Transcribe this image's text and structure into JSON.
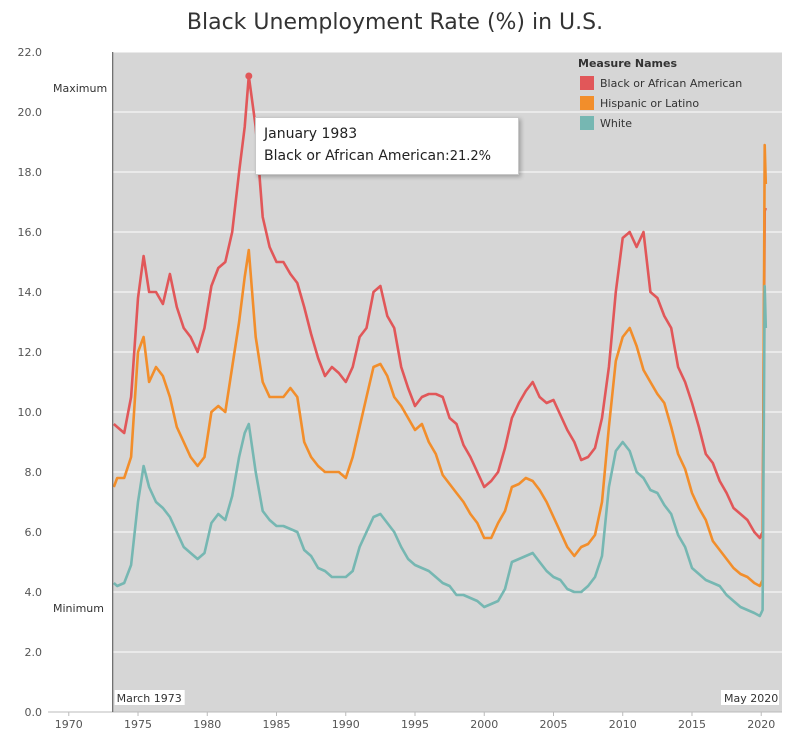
{
  "chart_data": {
    "type": "line",
    "title": "Black Unemployment Rate (%) in U.S.",
    "xlabel": "",
    "ylabel": "",
    "xlim": [
      1968.5,
      2021.5
    ],
    "ylim": [
      0,
      22
    ],
    "x_ticks": [
      "1970",
      "1975",
      "1980",
      "1985",
      "1990",
      "1995",
      "2000",
      "2005",
      "2010",
      "2015",
      "2020"
    ],
    "y_ticks": [
      "0.0",
      "2.0",
      "4.0",
      "6.0",
      "8.0",
      "10.0",
      "12.0",
      "14.0",
      "16.0",
      "18.0",
      "20.0",
      "22.0"
    ],
    "grid": "horizontal",
    "legend": {
      "title": "Measure Names",
      "placement": "top-right"
    },
    "x": [
      1973.25,
      1973.5,
      1974.0,
      1974.5,
      1975.0,
      1975.4,
      1975.8,
      1976.3,
      1976.8,
      1977.3,
      1977.8,
      1978.3,
      1978.8,
      1979.3,
      1979.8,
      1980.3,
      1980.8,
      1981.3,
      1981.8,
      1982.3,
      1982.7,
      1983.0,
      1983.5,
      1984.0,
      1984.5,
      1985.0,
      1985.5,
      1986.0,
      1986.5,
      1987.0,
      1987.5,
      1988.0,
      1988.5,
      1989.0,
      1989.5,
      1990.0,
      1990.5,
      1991.0,
      1991.5,
      1992.0,
      1992.5,
      1993.0,
      1993.5,
      1994.0,
      1994.5,
      1995.0,
      1995.5,
      1996.0,
      1996.5,
      1997.0,
      1997.5,
      1998.0,
      1998.5,
      1999.0,
      1999.5,
      2000.0,
      2000.5,
      2001.0,
      2001.5,
      2002.0,
      2002.5,
      2003.0,
      2003.5,
      2004.0,
      2004.5,
      2005.0,
      2005.5,
      2006.0,
      2006.5,
      2007.0,
      2007.5,
      2008.0,
      2008.5,
      2009.0,
      2009.5,
      2010.0,
      2010.5,
      2011.0,
      2011.5,
      2012.0,
      2012.5,
      2013.0,
      2013.5,
      2014.0,
      2014.5,
      2015.0,
      2015.5,
      2016.0,
      2016.5,
      2017.0,
      2017.5,
      2018.0,
      2018.5,
      2019.0,
      2019.5,
      2019.9,
      2020.1,
      2020.25,
      2020.33
    ],
    "series": [
      {
        "name": "Black or African American",
        "color": "#e15759",
        "values": [
          9.6,
          9.5,
          9.3,
          10.5,
          13.8,
          15.2,
          14.0,
          14.0,
          13.6,
          14.6,
          13.5,
          12.8,
          12.5,
          12.0,
          12.8,
          14.2,
          14.8,
          15.0,
          16.0,
          18.0,
          19.5,
          21.2,
          19.5,
          16.5,
          15.5,
          15.0,
          15.0,
          14.6,
          14.3,
          13.5,
          12.6,
          11.8,
          11.2,
          11.5,
          11.3,
          11.0,
          11.5,
          12.5,
          12.8,
          14.0,
          14.2,
          13.2,
          12.8,
          11.5,
          10.8,
          10.2,
          10.5,
          10.6,
          10.6,
          10.5,
          9.8,
          9.6,
          8.9,
          8.5,
          8.0,
          7.5,
          7.7,
          8.0,
          8.8,
          9.8,
          10.3,
          10.7,
          11.0,
          10.5,
          10.3,
          10.4,
          9.9,
          9.4,
          9.0,
          8.4,
          8.5,
          8.8,
          9.8,
          11.5,
          14.0,
          15.8,
          16.0,
          15.5,
          16.0,
          14.0,
          13.8,
          13.2,
          12.8,
          11.5,
          11.0,
          10.3,
          9.5,
          8.6,
          8.3,
          7.7,
          7.3,
          6.8,
          6.6,
          6.4,
          6.0,
          5.8,
          6.0,
          16.7,
          16.8
        ]
      },
      {
        "name": "Hispanic or Latino",
        "color": "#f28e2b",
        "values": [
          7.5,
          7.8,
          7.8,
          8.5,
          12.0,
          12.5,
          11.0,
          11.5,
          11.2,
          10.5,
          9.5,
          9.0,
          8.5,
          8.2,
          8.5,
          10.0,
          10.2,
          10.0,
          11.5,
          13.0,
          14.5,
          15.4,
          12.5,
          11.0,
          10.5,
          10.5,
          10.5,
          10.8,
          10.5,
          9.0,
          8.5,
          8.2,
          8.0,
          8.0,
          8.0,
          7.8,
          8.5,
          9.5,
          10.5,
          11.5,
          11.6,
          11.2,
          10.5,
          10.2,
          9.8,
          9.4,
          9.6,
          9.0,
          8.6,
          7.9,
          7.6,
          7.3,
          7.0,
          6.6,
          6.3,
          5.8,
          5.8,
          6.3,
          6.7,
          7.5,
          7.6,
          7.8,
          7.7,
          7.4,
          7.0,
          6.5,
          6.0,
          5.5,
          5.2,
          5.5,
          5.6,
          5.9,
          7.0,
          9.5,
          11.7,
          12.5,
          12.8,
          12.2,
          11.4,
          11.0,
          10.6,
          10.3,
          9.5,
          8.6,
          8.1,
          7.3,
          6.8,
          6.4,
          5.7,
          5.4,
          5.1,
          4.8,
          4.6,
          4.5,
          4.3,
          4.2,
          4.4,
          18.9,
          17.6
        ]
      },
      {
        "name": "White",
        "color": "#76b7b2",
        "values": [
          4.3,
          4.2,
          4.3,
          4.9,
          7.0,
          8.2,
          7.5,
          7.0,
          6.8,
          6.5,
          6.0,
          5.5,
          5.3,
          5.1,
          5.3,
          6.3,
          6.6,
          6.4,
          7.2,
          8.5,
          9.3,
          9.6,
          8.0,
          6.7,
          6.4,
          6.2,
          6.2,
          6.1,
          6.0,
          5.4,
          5.2,
          4.8,
          4.7,
          4.5,
          4.5,
          4.5,
          4.7,
          5.5,
          6.0,
          6.5,
          6.6,
          6.3,
          6.0,
          5.5,
          5.1,
          4.9,
          4.8,
          4.7,
          4.5,
          4.3,
          4.2,
          3.9,
          3.9,
          3.8,
          3.7,
          3.5,
          3.6,
          3.7,
          4.1,
          5.0,
          5.1,
          5.2,
          5.3,
          5.0,
          4.7,
          4.5,
          4.4,
          4.1,
          4.0,
          4.0,
          4.2,
          4.5,
          5.2,
          7.5,
          8.7,
          9.0,
          8.7,
          8.0,
          7.8,
          7.4,
          7.3,
          6.9,
          6.6,
          5.9,
          5.5,
          4.8,
          4.6,
          4.4,
          4.3,
          4.2,
          3.9,
          3.7,
          3.5,
          3.4,
          3.3,
          3.2,
          3.4,
          14.2,
          12.8
        ]
      }
    ],
    "reference_lines": {
      "max_label": "Maximum",
      "min_label": "Minimum",
      "max_value": 21.2,
      "min_value": 3.4,
      "start_label": "March 1973",
      "end_label": "May 2020",
      "start_x": 1973.17
    },
    "tooltip": {
      "date": "January 1983",
      "series": "Black or African American",
      "value": "21.2%",
      "x": 1983.0,
      "y": 21.2
    }
  }
}
